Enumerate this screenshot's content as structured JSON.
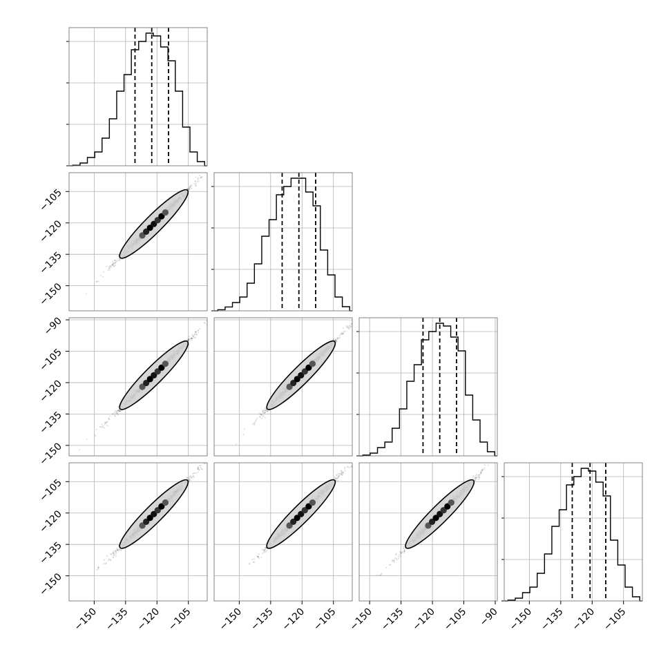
{
  "chart_data": {
    "type": "corner",
    "title": "",
    "n_params": 4,
    "colors": {
      "ink": "#000000",
      "grid": "#b0b0b0",
      "contour_fill": "#d0d0d0",
      "background": "#ffffff"
    },
    "grid": true,
    "diagonal": [
      {
        "param_index": 0,
        "xlim": [
          -162,
          -96
        ],
        "bins": [
          -158.5,
          -155,
          -151.5,
          -148,
          -144.5,
          -141,
          -137.5,
          -134,
          -130.5,
          -127,
          -123.5,
          -120,
          -116.5,
          -113,
          -109.5,
          -106,
          -102.5,
          -99
        ],
        "counts": [
          0.2,
          1,
          3,
          5,
          10,
          17,
          27,
          33,
          42,
          45,
          48,
          47,
          43,
          38,
          27,
          14,
          5,
          1.5
        ],
        "ymax": 50,
        "quantiles": [
          -130.5,
          -122.5,
          -114.5
        ]
      },
      {
        "param_index": 1,
        "xlim": [
          -162,
          -96
        ],
        "bins": [
          -158.5,
          -155,
          -151.5,
          -148,
          -144.5,
          -141,
          -137.5,
          -134,
          -130.5,
          -127,
          -123.5,
          -120,
          -116.5,
          -113,
          -109.5,
          -106,
          -102.5,
          -99
        ],
        "counts": [
          0.4,
          1.4,
          3,
          5,
          10,
          17,
          27,
          33,
          42,
          45,
          48,
          48,
          43,
          38,
          22,
          13,
          5,
          1.5
        ],
        "ymax": 50,
        "quantiles": [
          -129.5,
          -121.5,
          -113.5
        ]
      },
      {
        "param_index": 2,
        "xlim": [
          -155,
          -89
        ],
        "bins": [
          -151.5,
          -148,
          -144.5,
          -141,
          -137.5,
          -134,
          -130.5,
          -127,
          -123.5,
          -120,
          -116.5,
          -113,
          -109.5,
          -106,
          -102.5,
          -99,
          -95.5,
          -92
        ],
        "counts": [
          0.3,
          1,
          3,
          5,
          10,
          17,
          27,
          33,
          42,
          45,
          48,
          47,
          43,
          38,
          22,
          13,
          5,
          1.5
        ],
        "ymax": 50,
        "quantiles": [
          -124.5,
          -116.5,
          -108.5
        ]
      },
      {
        "param_index": 3,
        "xlim": [
          -162,
          -96
        ],
        "bins": [
          -158.5,
          -155,
          -151.5,
          -148,
          -144.5,
          -141,
          -137.5,
          -134,
          -130.5,
          -127,
          -123.5,
          -120,
          -116.5,
          -113,
          -109.5,
          -106,
          -102.5,
          -99
        ],
        "counts": [
          0.3,
          1,
          3,
          5,
          10,
          17,
          27,
          33,
          42,
          45,
          48,
          47,
          43,
          38,
          22,
          13,
          5,
          1.5
        ],
        "ymax": 50,
        "quantiles": [
          -129.5,
          -121,
          -113.5
        ]
      }
    ],
    "scatter_panels": [
      {
        "row": 1,
        "col": 0,
        "xlim": [
          -162,
          -96
        ],
        "ylim": [
          -162,
          -96
        ],
        "center": [
          -121.5,
          -120.5
        ],
        "spread": 7
      },
      {
        "row": 2,
        "col": 0,
        "xlim": [
          -162,
          -96
        ],
        "ylim": [
          -155,
          -89
        ],
        "center": [
          -121.5,
          -116.5
        ],
        "spread": 7
      },
      {
        "row": 2,
        "col": 1,
        "xlim": [
          -162,
          -96
        ],
        "ylim": [
          -155,
          -89
        ],
        "center": [
          -120.5,
          -116.5
        ],
        "spread": 7
      },
      {
        "row": 3,
        "col": 0,
        "xlim": [
          -162,
          -96
        ],
        "ylim": [
          -162,
          -96
        ],
        "center": [
          -121.5,
          -120.5
        ],
        "spread": 7
      },
      {
        "row": 3,
        "col": 1,
        "xlim": [
          -162,
          -96
        ],
        "ylim": [
          -162,
          -96
        ],
        "center": [
          -120.5,
          -120.5
        ],
        "spread": 7
      },
      {
        "row": 3,
        "col": 2,
        "xlim": [
          -155,
          -89
        ],
        "ylim": [
          -162,
          -96
        ],
        "center": [
          -116.5,
          -120.5
        ],
        "spread": 7
      }
    ],
    "row_y_ticks": [
      null,
      [
        "-105",
        "-120",
        "-135",
        "-150"
      ],
      [
        "-90",
        "-105",
        "-120",
        "-135",
        "-150"
      ],
      [
        "-105",
        "-120",
        "-135",
        "-150"
      ]
    ],
    "row_y_tick_values": [
      null,
      [
        -105,
        -120,
        -135,
        -150
      ],
      [
        -90,
        -105,
        -120,
        -135,
        -150
      ],
      [
        -105,
        -120,
        -135,
        -150
      ]
    ],
    "col_x_ticks": [
      [
        "-150",
        "-135",
        "-120",
        "-105"
      ],
      [
        "-150",
        "-135",
        "-120",
        "-105"
      ],
      [
        "-150",
        "-135",
        "-120",
        "-105",
        "-90"
      ],
      [
        "-150",
        "-135",
        "-120",
        "-105"
      ]
    ],
    "col_x_tick_values": [
      [
        -150,
        -135,
        -120,
        -105
      ],
      [
        -150,
        -135,
        -120,
        -105
      ],
      [
        -150,
        -135,
        -120,
        -105,
        -90
      ],
      [
        -150,
        -135,
        -120,
        -105
      ]
    ]
  }
}
